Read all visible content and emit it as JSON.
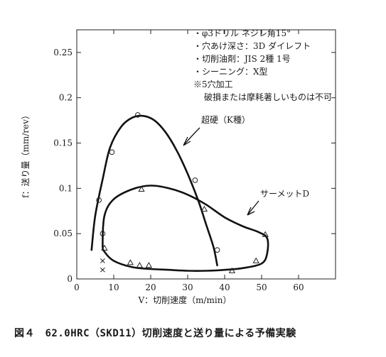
{
  "chart_data": {
    "type": "scatter",
    "xlabel": "V：切削速度（m/min）",
    "ylabel": "f：送り量（mm/rev）",
    "xlim": [
      0,
      70
    ],
    "ylim": [
      0,
      0.275
    ],
    "x_ticks": [
      "0",
      "10",
      "20",
      "30",
      "40",
      "50",
      "60"
    ],
    "y_ticks": [
      "0",
      "0.05",
      "0.1",
      "0.15",
      "0.2",
      "0.25"
    ],
    "grid": false,
    "notes": [
      "・φ3ドリル ネジレ角15°",
      "・穴あけ深さ：3D ダイレフト",
      "・切削油剤：JIS 2種 1号",
      "・シーニング：X型",
      "※5穴加工",
      "破損または摩耗著しいものは不可"
    ],
    "series": [
      {
        "name": "超硬（K種）",
        "marker": "circle",
        "points": [
          [
            6,
            0.087
          ],
          [
            7,
            0.05
          ],
          [
            9.5,
            0.14
          ],
          [
            16.5,
            0.181
          ],
          [
            32,
            0.109
          ],
          [
            38,
            0.032
          ]
        ],
        "boundary": [
          [
            4,
            0.032
          ],
          [
            5,
            0.07
          ],
          [
            7,
            0.11
          ],
          [
            9,
            0.145
          ],
          [
            12,
            0.168
          ],
          [
            15,
            0.178
          ],
          [
            18,
            0.18
          ],
          [
            21,
            0.175
          ],
          [
            24,
            0.162
          ],
          [
            27,
            0.142
          ],
          [
            30,
            0.116
          ],
          [
            33,
            0.085
          ],
          [
            35,
            0.06
          ],
          [
            37,
            0.035
          ],
          [
            38,
            0.015
          ]
        ]
      },
      {
        "name": "サーメットD",
        "marker": "triangle",
        "points": [
          [
            7.5,
            0.034
          ],
          [
            14.5,
            0.018
          ],
          [
            17,
            0.015
          ],
          [
            17.5,
            0.099
          ],
          [
            19.5,
            0.015
          ],
          [
            34.5,
            0.077
          ],
          [
            42,
            0.009
          ],
          [
            48.5,
            0.02
          ],
          [
            51,
            0.049
          ]
        ],
        "boundary": [
          [
            7,
            0.038
          ],
          [
            7.5,
            0.07
          ],
          [
            10,
            0.088
          ],
          [
            15,
            0.099
          ],
          [
            20,
            0.103
          ],
          [
            25,
            0.1
          ],
          [
            30,
            0.093
          ],
          [
            35,
            0.082
          ],
          [
            40,
            0.068
          ],
          [
            45,
            0.058
          ],
          [
            49,
            0.052
          ],
          [
            51.5,
            0.045
          ],
          [
            51.5,
            0.028
          ],
          [
            50,
            0.017
          ],
          [
            45,
            0.012
          ],
          [
            40,
            0.01
          ],
          [
            35,
            0.009
          ],
          [
            30,
            0.009
          ],
          [
            25,
            0.01
          ],
          [
            20,
            0.011
          ],
          [
            15,
            0.013
          ],
          [
            10,
            0.02
          ],
          [
            7.5,
            0.03
          ]
        ]
      },
      {
        "name": "",
        "marker": "x",
        "points": [
          [
            7,
            0.02
          ],
          [
            7,
            0.01
          ]
        ]
      }
    ]
  },
  "caption": "図４　62.0HRC（SKD11）切削速度と送り量による予備実験"
}
